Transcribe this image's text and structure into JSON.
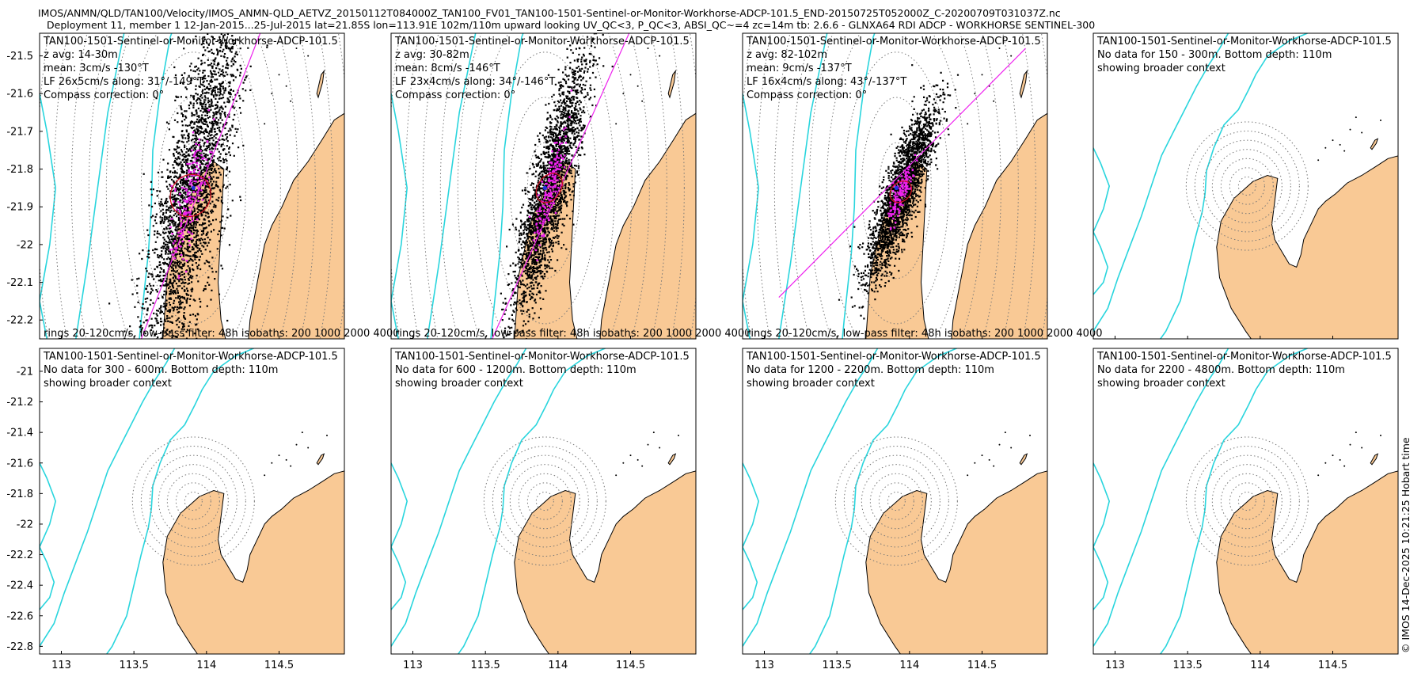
{
  "header": {
    "line1": "IMOS/ANMN/QLD/TAN100/Velocity/IMOS_ANMN-QLD_AETVZ_20150112T084000Z_TAN100_FV01_TAN100-1501-Sentinel-or-Monitor-Workhorse-ADCP-101.5_END-20150725T052000Z_C-20200709T031037Z.nc",
    "line2": "Deployment 11, member 1 12-Jan-2015...25-Jul-2015 lat=21.85S lon=113.91E 102m/110m upward looking UV_QC<3, P_QC<3, ABSI_QC~=4 zc=14m tb: 2.6.6 - GLNXA64 RDI ADCP - WORKHORSE SENTINEL-300"
  },
  "credit": "© IMOS 14-Dec-2025 10:21:25 Hobart time",
  "colors": {
    "land": "#f9c995",
    "isobath": "#29d5dd",
    "scatter": "#000000",
    "lowpass": "#ee22ee",
    "ellipse": "#cc1122",
    "mean": "#2233dd",
    "ring": "#777777"
  },
  "chart_data": [
    {
      "type": "scatter",
      "title": "TAN100-1501-Sentinel-or-Monitor-Workhorse-ADCP-101.5",
      "info": [
        "z avg: 14-30m",
        "mean: 3cm/s -130°T",
        "LF 26x5cm/s along: 31°/-149°T",
        "Compass correction: 0°"
      ],
      "footer": "rings 20-120cm/s, low-pass filter: 48h isobaths: 200 1000 2000 4000",
      "xlim": [
        112.85,
        114.95
      ],
      "ylim": [
        -22.25,
        -21.44
      ],
      "yticks": [
        -21.5,
        -21.6,
        -21.7,
        -21.8,
        -21.9,
        -22,
        -22.1,
        -22.2
      ],
      "xticks": [
        113,
        113.5,
        114,
        114.5
      ],
      "show_xticks": false,
      "center": [
        113.91,
        -21.85
      ],
      "rings_deg": [
        0.12,
        0.24,
        0.36,
        0.48,
        0.6,
        0.72,
        0.84,
        0.96,
        1.08
      ],
      "cloud": {
        "cx": 113.89,
        "cy": -21.87,
        "angle_deg": 59,
        "sigma_major": 0.27,
        "sigma_minor": 0.095,
        "points": 2800
      },
      "lowpass_points": 170,
      "lowpass_scale": 0.42,
      "axis_line": {
        "from": [
          113.5,
          -22.3
        ],
        "to": [
          114.37,
          -21.44
        ]
      }
    },
    {
      "type": "scatter",
      "title": "TAN100-1501-Sentinel-or-Monitor-Workhorse-ADCP-101.5",
      "info": [
        "z avg: 30-82m",
        "mean: 8cm/s -146°T",
        "LF 23x4cm/s along: 34°/-146°T",
        "Compass correction: 0°"
      ],
      "footer": "rings 20-120cm/s, low-pass filter: 48h isobaths: 200 1000 2000 4000",
      "xlim": [
        112.85,
        114.95
      ],
      "ylim": [
        -22.25,
        -21.44
      ],
      "yticks": [],
      "xticks": [
        113,
        113.5,
        114,
        114.5
      ],
      "show_xticks": false,
      "center": [
        113.91,
        -21.85
      ],
      "rings_deg": [
        0.12,
        0.24,
        0.36,
        0.48,
        0.6,
        0.72,
        0.84,
        0.96,
        1.08
      ],
      "cloud": {
        "cx": 113.94,
        "cy": -21.85,
        "angle_deg": 55,
        "sigma_major": 0.2,
        "sigma_minor": 0.055,
        "points": 2500
      },
      "lowpass_points": 170,
      "lowpass_scale": 0.45,
      "axis_line": {
        "from": [
          113.5,
          -22.29
        ],
        "to": [
          114.49,
          -21.44
        ]
      }
    },
    {
      "type": "scatter",
      "title": "TAN100-1501-Sentinel-or-Monitor-Workhorse-ADCP-101.5",
      "info": [
        "z avg: 82-102m",
        "mean: 9cm/s -137°T",
        "LF 16x4cm/s along: 43°/-137°T",
        "Compass correction: 0°"
      ],
      "footer": "rings 20-120cm/s, low-pass filter: 48h isobaths: 200 1000 2000 4000",
      "xlim": [
        112.85,
        114.95
      ],
      "ylim": [
        -22.25,
        -21.44
      ],
      "yticks": [],
      "xticks": [
        113,
        113.5,
        114,
        114.5
      ],
      "show_xticks": false,
      "center": [
        113.91,
        -21.85
      ],
      "rings_deg": [
        0.12,
        0.24,
        0.36,
        0.48,
        0.6,
        0.72,
        0.84,
        0.96,
        1.08
      ],
      "cloud": {
        "cx": 113.94,
        "cy": -21.86,
        "angle_deg": 44,
        "sigma_major": 0.15,
        "sigma_minor": 0.045,
        "points": 2400
      },
      "lowpass_points": 150,
      "lowpass_scale": 0.4,
      "axis_line": {
        "from": [
          113.1,
          -22.14
        ],
        "to": [
          114.8,
          -21.48
        ]
      }
    },
    {
      "type": "map",
      "title": "TAN100-1501-Sentinel-or-Monitor-Workhorse-ADCP-101.5",
      "info": [
        "No data for 150 - 300m. Bottom depth: 110m",
        "showing broader context"
      ],
      "footer": "",
      "xlim": [
        112.85,
        114.95
      ],
      "ylim": [
        -22.85,
        -20.85
      ],
      "yticks": [],
      "xticks": [
        113,
        113.5,
        114,
        114.5
      ],
      "show_xticks": false,
      "center": [
        113.91,
        -21.85
      ],
      "rings_deg": [
        0.06,
        0.12,
        0.18,
        0.24,
        0.3,
        0.36,
        0.42
      ]
    },
    {
      "type": "map",
      "title": "TAN100-1501-Sentinel-or-Monitor-Workhorse-ADCP-101.5",
      "info": [
        "No data for 300 - 600m. Bottom depth: 110m",
        "showing broader context"
      ],
      "footer": "",
      "xlim": [
        112.85,
        114.95
      ],
      "ylim": [
        -22.85,
        -20.85
      ],
      "yticks": [
        -21,
        -21.2,
        -21.4,
        -21.6,
        -21.8,
        -22,
        -22.2,
        -22.4,
        -22.6,
        -22.8
      ],
      "xticks": [
        113,
        113.5,
        114,
        114.5
      ],
      "show_xticks": true,
      "center": [
        113.91,
        -21.85
      ],
      "rings_deg": [
        0.06,
        0.12,
        0.18,
        0.24,
        0.3,
        0.36,
        0.42
      ]
    },
    {
      "type": "map",
      "title": "TAN100-1501-Sentinel-or-Monitor-Workhorse-ADCP-101.5",
      "info": [
        "No data for 600 - 1200m. Bottom depth: 110m",
        "showing broader context"
      ],
      "footer": "",
      "xlim": [
        112.85,
        114.95
      ],
      "ylim": [
        -22.85,
        -20.85
      ],
      "yticks": [],
      "xticks": [
        113,
        113.5,
        114,
        114.5
      ],
      "show_xticks": true,
      "center": [
        113.91,
        -21.85
      ],
      "rings_deg": [
        0.06,
        0.12,
        0.18,
        0.24,
        0.3,
        0.36,
        0.42
      ]
    },
    {
      "type": "map",
      "title": "TAN100-1501-Sentinel-or-Monitor-Workhorse-ADCP-101.5",
      "info": [
        "No data for 1200 - 2200m. Bottom depth: 110m",
        "showing broader context"
      ],
      "footer": "",
      "xlim": [
        112.85,
        114.95
      ],
      "ylim": [
        -22.85,
        -20.85
      ],
      "yticks": [],
      "xticks": [
        113,
        113.5,
        114,
        114.5
      ],
      "show_xticks": true,
      "center": [
        113.91,
        -21.85
      ],
      "rings_deg": [
        0.06,
        0.12,
        0.18,
        0.24,
        0.3,
        0.36,
        0.42
      ]
    },
    {
      "type": "map",
      "title": "TAN100-1501-Sentinel-or-Monitor-Workhorse-ADCP-101.5",
      "info": [
        "No data for 2200 - 4800m. Bottom depth: 110m",
        "showing broader context"
      ],
      "footer": "",
      "xlim": [
        112.85,
        114.95
      ],
      "ylim": [
        -22.85,
        -20.85
      ],
      "yticks": [],
      "xticks": [
        113,
        113.5,
        114,
        114.5
      ],
      "show_xticks": true,
      "center": [
        113.91,
        -21.85
      ],
      "rings_deg": [
        0.06,
        0.12,
        0.18,
        0.24,
        0.3,
        0.36,
        0.42
      ]
    }
  ]
}
